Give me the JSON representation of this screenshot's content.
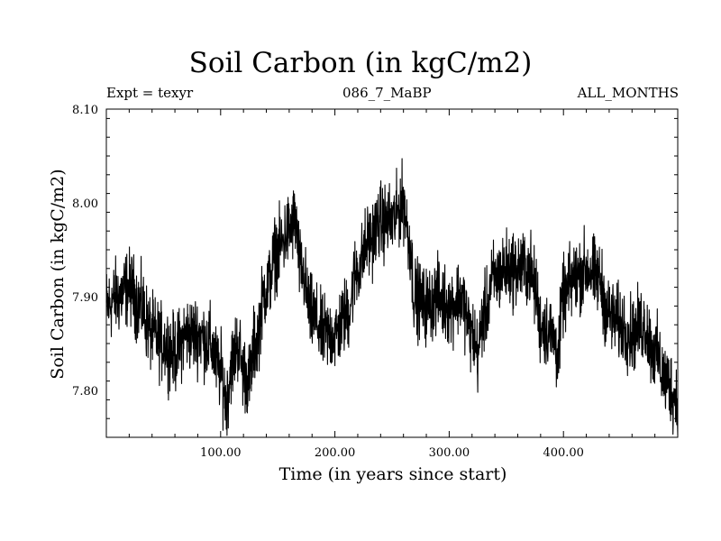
{
  "chart_data": {
    "type": "line",
    "title": "Soil Carbon (in kgC/m2)",
    "subtitle_left": "Expt = texyr",
    "subtitle_center": "086_7_MaBP",
    "subtitle_right": "ALL_MONTHS",
    "xlabel": "Time (in years since start)",
    "ylabel": "Soil Carbon (in kgC/m2)",
    "xlim": [
      0,
      500
    ],
    "ylim": [
      7.75,
      8.1
    ],
    "x_ticks": [
      100,
      200,
      300,
      400
    ],
    "x_tick_labels": [
      "100.00",
      "200.00",
      "300.00",
      "400.00"
    ],
    "y_ticks": [
      7.8,
      7.9,
      8.0,
      8.1
    ],
    "y_tick_labels": [
      "7.80",
      "7.90",
      "8.00",
      "8.10"
    ],
    "grid": false,
    "series": [
      {
        "color": "#000000",
        "noise_amplitude": 0.022,
        "x": [
          0,
          10,
          20,
          30,
          40,
          50,
          60,
          70,
          80,
          90,
          100,
          105,
          110,
          115,
          120,
          125,
          130,
          140,
          150,
          160,
          165,
          170,
          180,
          190,
          200,
          210,
          220,
          230,
          240,
          250,
          260,
          265,
          270,
          280,
          290,
          300,
          310,
          320,
          325,
          330,
          340,
          350,
          360,
          370,
          375,
          380,
          390,
          395,
          400,
          410,
          420,
          430,
          440,
          450,
          460,
          470,
          480,
          490,
          500
        ],
        "y": [
          7.89,
          7.9,
          7.91,
          7.89,
          7.86,
          7.85,
          7.84,
          7.86,
          7.86,
          7.85,
          7.82,
          7.79,
          7.83,
          7.85,
          7.82,
          7.81,
          7.85,
          7.91,
          7.95,
          7.97,
          7.98,
          7.93,
          7.88,
          7.86,
          7.86,
          7.88,
          7.93,
          7.96,
          7.98,
          7.98,
          8.0,
          7.96,
          7.9,
          7.89,
          7.9,
          7.89,
          7.9,
          7.86,
          7.84,
          7.88,
          7.92,
          7.93,
          7.93,
          7.93,
          7.91,
          7.87,
          7.86,
          7.84,
          7.9,
          7.92,
          7.93,
          7.92,
          7.88,
          7.87,
          7.86,
          7.87,
          7.84,
          7.81,
          7.79
        ]
      }
    ]
  }
}
